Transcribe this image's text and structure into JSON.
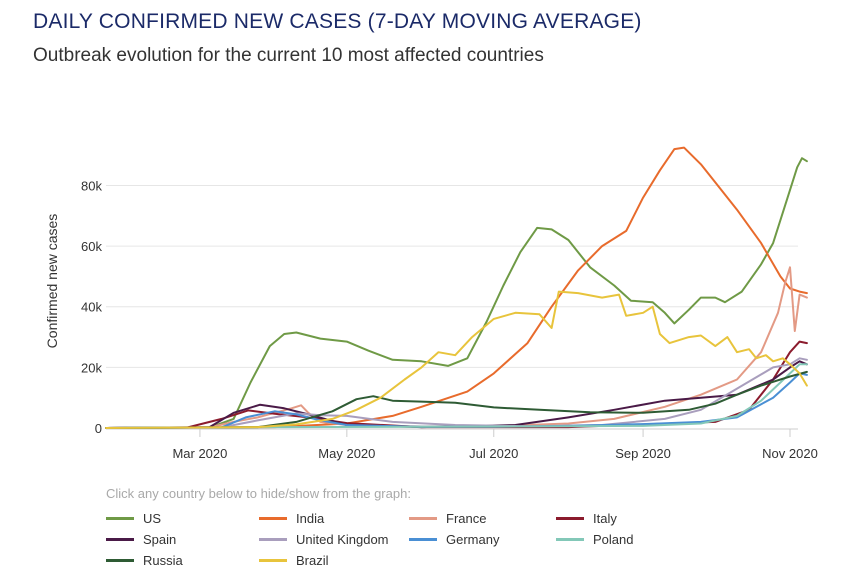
{
  "header": {
    "title": "DAILY CONFIRMED NEW CASES (7-DAY MOVING AVERAGE)",
    "subtitle": "Outbreak evolution for the current 10 most affected countries"
  },
  "legend_hint": "Click any country below to hide/show from the graph:",
  "chart_data": {
    "type": "line",
    "title": "DAILY CONFIRMED NEW CASES (7-DAY MOVING AVERAGE)",
    "subtitle": "Outbreak evolution for the current 10 most affected countries",
    "ylabel": "Confirmed new cases",
    "xlabel": "",
    "x_range": [
      "2020-01-22",
      "2020-11-01"
    ],
    "ylim": [
      0,
      95000
    ],
    "y_ticks": [
      0,
      20000,
      40000,
      60000,
      80000
    ],
    "y_tick_labels": [
      "0",
      "20k",
      "40k",
      "60k",
      "80k"
    ],
    "x_ticks": [
      "2020-03-01",
      "2020-05-01",
      "2020-07-01",
      "2020-09-01",
      "2020-11-01"
    ],
    "x_tick_labels": [
      "Mar 2020",
      "May 2020",
      "Jul 2020",
      "Sep 2020",
      "Nov 2020"
    ],
    "grid": "horizontal",
    "legend_placement": "bottom",
    "series": [
      {
        "name": "US",
        "color": "#6f9a46",
        "points": [
          [
            "2020-01-22",
            0
          ],
          [
            "2020-03-05",
            200
          ],
          [
            "2020-03-15",
            3000
          ],
          [
            "2020-03-22",
            15000
          ],
          [
            "2020-03-30",
            27000
          ],
          [
            "2020-04-05",
            31000
          ],
          [
            "2020-04-10",
            31500
          ],
          [
            "2020-04-20",
            29500
          ],
          [
            "2020-05-01",
            28500
          ],
          [
            "2020-05-10",
            25500
          ],
          [
            "2020-05-20",
            22500
          ],
          [
            "2020-06-01",
            22000
          ],
          [
            "2020-06-12",
            20500
          ],
          [
            "2020-06-20",
            23000
          ],
          [
            "2020-06-28",
            35000
          ],
          [
            "2020-07-05",
            47000
          ],
          [
            "2020-07-12",
            58000
          ],
          [
            "2020-07-19",
            66000
          ],
          [
            "2020-07-25",
            65500
          ],
          [
            "2020-08-01",
            62000
          ],
          [
            "2020-08-10",
            53000
          ],
          [
            "2020-08-20",
            47000
          ],
          [
            "2020-08-27",
            42000
          ],
          [
            "2020-09-05",
            41500
          ],
          [
            "2020-09-10",
            38000
          ],
          [
            "2020-09-14",
            34500
          ],
          [
            "2020-09-20",
            39000
          ],
          [
            "2020-09-25",
            43000
          ],
          [
            "2020-10-01",
            43000
          ],
          [
            "2020-10-05",
            41500
          ],
          [
            "2020-10-12",
            45000
          ],
          [
            "2020-10-20",
            54000
          ],
          [
            "2020-10-25",
            61000
          ],
          [
            "2020-10-31",
            76000
          ],
          [
            "2020-11-04",
            86000
          ],
          [
            "2020-11-06",
            89000
          ],
          [
            "2020-11-08",
            88000
          ]
        ]
      },
      {
        "name": "India",
        "color": "#e86b2c",
        "points": [
          [
            "2020-01-22",
            0
          ],
          [
            "2020-04-01",
            300
          ],
          [
            "2020-05-01",
            1500
          ],
          [
            "2020-05-20",
            4000
          ],
          [
            "2020-06-01",
            7000
          ],
          [
            "2020-06-20",
            12000
          ],
          [
            "2020-07-01",
            18000
          ],
          [
            "2020-07-15",
            28000
          ],
          [
            "2020-07-25",
            40000
          ],
          [
            "2020-08-05",
            52000
          ],
          [
            "2020-08-15",
            60000
          ],
          [
            "2020-08-25",
            65000
          ],
          [
            "2020-09-01",
            76000
          ],
          [
            "2020-09-08",
            85000
          ],
          [
            "2020-09-14",
            92000
          ],
          [
            "2020-09-18",
            92500
          ],
          [
            "2020-09-25",
            87000
          ],
          [
            "2020-10-01",
            81000
          ],
          [
            "2020-10-10",
            72000
          ],
          [
            "2020-10-20",
            61000
          ],
          [
            "2020-10-28",
            50000
          ],
          [
            "2020-11-01",
            46000
          ],
          [
            "2020-11-05",
            45000
          ],
          [
            "2020-11-08",
            44500
          ]
        ]
      },
      {
        "name": "France",
        "color": "#e39a85",
        "points": [
          [
            "2020-01-22",
            0
          ],
          [
            "2020-03-05",
            200
          ],
          [
            "2020-03-15",
            2000
          ],
          [
            "2020-03-25",
            3500
          ],
          [
            "2020-04-01",
            5000
          ],
          [
            "2020-04-08",
            6500
          ],
          [
            "2020-04-12",
            7500
          ],
          [
            "2020-04-15",
            5000
          ],
          [
            "2020-04-20",
            2000
          ],
          [
            "2020-05-01",
            1000
          ],
          [
            "2020-06-01",
            500
          ],
          [
            "2020-07-01",
            600
          ],
          [
            "2020-08-01",
            1500
          ],
          [
            "2020-08-20",
            3000
          ],
          [
            "2020-09-10",
            7000
          ],
          [
            "2020-09-25",
            11000
          ],
          [
            "2020-10-10",
            16000
          ],
          [
            "2020-10-20",
            25000
          ],
          [
            "2020-10-27",
            38000
          ],
          [
            "2020-10-30",
            48000
          ],
          [
            "2020-11-01",
            53000
          ],
          [
            "2020-11-03",
            32000
          ],
          [
            "2020-11-05",
            44000
          ],
          [
            "2020-11-08",
            43000
          ]
        ]
      },
      {
        "name": "Italy",
        "color": "#8b1b2d",
        "points": [
          [
            "2020-01-22",
            0
          ],
          [
            "2020-02-25",
            200
          ],
          [
            "2020-03-10",
            3000
          ],
          [
            "2020-03-21",
            5800
          ],
          [
            "2020-04-01",
            4700
          ],
          [
            "2020-04-15",
            3500
          ],
          [
            "2020-05-01",
            1600
          ],
          [
            "2020-06-01",
            300
          ],
          [
            "2020-08-01",
            300
          ],
          [
            "2020-09-01",
            1200
          ],
          [
            "2020-10-01",
            2000
          ],
          [
            "2020-10-15",
            6000
          ],
          [
            "2020-10-25",
            16000
          ],
          [
            "2020-11-01",
            25000
          ],
          [
            "2020-11-05",
            28500
          ],
          [
            "2020-11-08",
            28000
          ]
        ]
      },
      {
        "name": "Spain",
        "color": "#4a1a47",
        "points": [
          [
            "2020-01-22",
            0
          ],
          [
            "2020-03-05",
            300
          ],
          [
            "2020-03-15",
            5000
          ],
          [
            "2020-03-26",
            7700
          ],
          [
            "2020-04-05",
            6500
          ],
          [
            "2020-04-15",
            4500
          ],
          [
            "2020-05-01",
            1000
          ],
          [
            "2020-06-01",
            300
          ],
          [
            "2020-07-10",
            1000
          ],
          [
            "2020-08-01",
            3500
          ],
          [
            "2020-08-20",
            6000
          ],
          [
            "2020-09-10",
            9000
          ],
          [
            "2020-09-25",
            10000
          ],
          [
            "2020-10-10",
            11000
          ],
          [
            "2020-10-25",
            16000
          ],
          [
            "2020-11-01",
            20000
          ],
          [
            "2020-11-05",
            22000
          ],
          [
            "2020-11-08",
            21000
          ]
        ]
      },
      {
        "name": "United Kingdom",
        "color": "#a99ebd",
        "points": [
          [
            "2020-01-22",
            0
          ],
          [
            "2020-03-10",
            200
          ],
          [
            "2020-03-25",
            2500
          ],
          [
            "2020-04-10",
            4800
          ],
          [
            "2020-04-20",
            4200
          ],
          [
            "2020-05-01",
            4000
          ],
          [
            "2020-05-20",
            2000
          ],
          [
            "2020-06-15",
            1000
          ],
          [
            "2020-07-15",
            600
          ],
          [
            "2020-08-15",
            1000
          ],
          [
            "2020-09-10",
            3000
          ],
          [
            "2020-09-25",
            6000
          ],
          [
            "2020-10-10",
            13000
          ],
          [
            "2020-10-25",
            20000
          ],
          [
            "2020-11-01",
            21000
          ],
          [
            "2020-11-05",
            23000
          ],
          [
            "2020-11-08",
            22500
          ]
        ]
      },
      {
        "name": "Germany",
        "color": "#4a8fd4",
        "points": [
          [
            "2020-01-22",
            0
          ],
          [
            "2020-03-10",
            200
          ],
          [
            "2020-03-20",
            3500
          ],
          [
            "2020-04-01",
            5500
          ],
          [
            "2020-04-10",
            4500
          ],
          [
            "2020-04-20",
            2500
          ],
          [
            "2020-05-01",
            1000
          ],
          [
            "2020-06-01",
            400
          ],
          [
            "2020-07-01",
            400
          ],
          [
            "2020-08-01",
            700
          ],
          [
            "2020-09-01",
            1300
          ],
          [
            "2020-09-25",
            2000
          ],
          [
            "2020-10-10",
            3500
          ],
          [
            "2020-10-25",
            10000
          ],
          [
            "2020-11-01",
            15000
          ],
          [
            "2020-11-05",
            18000
          ],
          [
            "2020-11-08",
            17500
          ]
        ]
      },
      {
        "name": "Poland",
        "color": "#83c8b8",
        "points": [
          [
            "2020-01-22",
            0
          ],
          [
            "2020-04-01",
            300
          ],
          [
            "2020-06-01",
            400
          ],
          [
            "2020-08-01",
            600
          ],
          [
            "2020-09-01",
            700
          ],
          [
            "2020-09-25",
            1500
          ],
          [
            "2020-10-10",
            4000
          ],
          [
            "2020-10-20",
            9000
          ],
          [
            "2020-10-28",
            15000
          ],
          [
            "2020-11-01",
            18000
          ],
          [
            "2020-11-05",
            21000
          ],
          [
            "2020-11-08",
            21000
          ]
        ]
      },
      {
        "name": "Russia",
        "color": "#2e5b34",
        "points": [
          [
            "2020-01-22",
            0
          ],
          [
            "2020-03-25",
            300
          ],
          [
            "2020-04-10",
            2000
          ],
          [
            "2020-04-25",
            5500
          ],
          [
            "2020-05-05",
            9500
          ],
          [
            "2020-05-12",
            10500
          ],
          [
            "2020-05-20",
            9000
          ],
          [
            "2020-06-01",
            8700
          ],
          [
            "2020-06-15",
            8300
          ],
          [
            "2020-07-01",
            6800
          ],
          [
            "2020-07-20",
            6000
          ],
          [
            "2020-08-10",
            5200
          ],
          [
            "2020-09-01",
            5000
          ],
          [
            "2020-09-20",
            6000
          ],
          [
            "2020-10-01",
            8000
          ],
          [
            "2020-10-10",
            11000
          ],
          [
            "2020-10-20",
            14000
          ],
          [
            "2020-11-01",
            17000
          ],
          [
            "2020-11-08",
            18500
          ]
        ]
      },
      {
        "name": "Brazil",
        "color": "#e8c43c",
        "points": [
          [
            "2020-01-22",
            0
          ],
          [
            "2020-03-25",
            300
          ],
          [
            "2020-04-10",
            1200
          ],
          [
            "2020-04-25",
            3000
          ],
          [
            "2020-05-05",
            6000
          ],
          [
            "2020-05-15",
            10000
          ],
          [
            "2020-05-25",
            16000
          ],
          [
            "2020-06-01",
            20000
          ],
          [
            "2020-06-08",
            25000
          ],
          [
            "2020-06-15",
            24000
          ],
          [
            "2020-06-22",
            30000
          ],
          [
            "2020-07-01",
            36000
          ],
          [
            "2020-07-10",
            38000
          ],
          [
            "2020-07-20",
            37500
          ],
          [
            "2020-07-25",
            33000
          ],
          [
            "2020-07-28",
            45000
          ],
          [
            "2020-08-05",
            44500
          ],
          [
            "2020-08-15",
            43000
          ],
          [
            "2020-08-22",
            44000
          ],
          [
            "2020-08-25",
            37000
          ],
          [
            "2020-09-01",
            38000
          ],
          [
            "2020-09-05",
            40000
          ],
          [
            "2020-09-08",
            31000
          ],
          [
            "2020-09-12",
            28000
          ],
          [
            "2020-09-20",
            30000
          ],
          [
            "2020-09-25",
            30500
          ],
          [
            "2020-10-01",
            27000
          ],
          [
            "2020-10-06",
            30000
          ],
          [
            "2020-10-10",
            25000
          ],
          [
            "2020-10-15",
            26000
          ],
          [
            "2020-10-18",
            23000
          ],
          [
            "2020-10-22",
            24000
          ],
          [
            "2020-10-25",
            22000
          ],
          [
            "2020-10-29",
            23000
          ],
          [
            "2020-11-01",
            21000
          ],
          [
            "2020-11-05",
            18000
          ],
          [
            "2020-11-08",
            14000
          ]
        ]
      }
    ]
  }
}
